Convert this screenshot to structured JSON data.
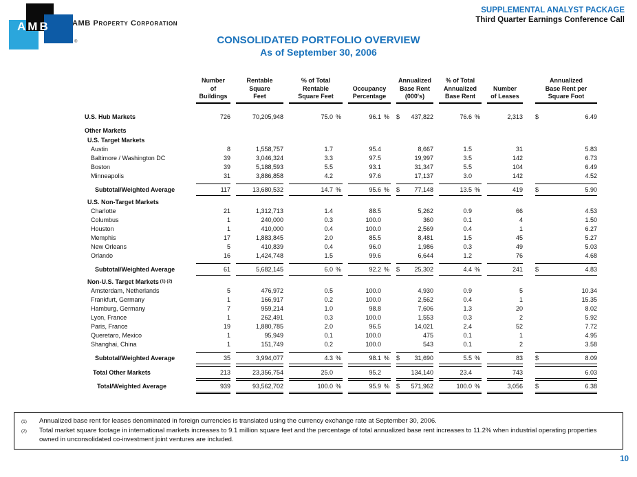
{
  "brand": {
    "logo_text": "AMB",
    "registered_mark": "®",
    "company_name": "AMB Property Corporation",
    "logo_colors": {
      "black": "#0b0b0b",
      "dark_blue": "#0d5ba6",
      "light_blue": "#2ba6dc"
    },
    "accent_blue": "#1b73bc"
  },
  "header": {
    "line1": "SUPPLEMENTAL ANALYST PACKAGE",
    "line2": "Third Quarter Earnings Conference Call"
  },
  "title": {
    "line1": "CONSOLIDATED PORTFOLIO OVERVIEW",
    "line2": "As of September 30, 2006"
  },
  "table": {
    "column_headers": [
      [
        "Number",
        "of",
        "Buildings"
      ],
      [
        "Rentable",
        "Square",
        "Feet"
      ],
      [
        "% of Total",
        "Rentable",
        "Square Feet"
      ],
      [
        "Occupancy",
        "Percentage"
      ],
      [
        "Annualized",
        "Base Rent",
        "(000's)"
      ],
      [
        "% of Total",
        "Annualized",
        "Base Rent"
      ],
      [
        "Number",
        "of Leases"
      ],
      [
        "Annualized",
        "Base Rent per",
        "Square Foot"
      ]
    ],
    "rows": [
      {
        "label": "U.S. Hub Markets",
        "type": "hub",
        "cells": [
          "726",
          "70,205,948",
          "75.0",
          "%",
          "96.1",
          "%",
          "$",
          "437,822",
          "76.6",
          "%",
          "2,313",
          "$",
          "6.49"
        ]
      },
      {
        "label": "Other Markets",
        "type": "sec0",
        "cells": null
      },
      {
        "label": "U.S. Target Markets",
        "type": "sec1",
        "cells": null
      },
      {
        "label": "Austin",
        "type": "item",
        "cells": [
          "8",
          "1,558,757",
          "1.7",
          "",
          "95.4",
          "",
          "",
          "8,667",
          "1.5",
          "",
          "31",
          "",
          "5.83"
        ]
      },
      {
        "label": "Baltimore / Washington DC",
        "type": "item",
        "cells": [
          "39",
          "3,046,324",
          "3.3",
          "",
          "97.5",
          "",
          "",
          "19,997",
          "3.5",
          "",
          "142",
          "",
          "6.73"
        ]
      },
      {
        "label": "Boston",
        "type": "item",
        "cells": [
          "39",
          "5,188,593",
          "5.5",
          "",
          "93.1",
          "",
          "",
          "31,347",
          "5.5",
          "",
          "104",
          "",
          "6.49"
        ]
      },
      {
        "label": "Minneapolis",
        "type": "item",
        "cells": [
          "31",
          "3,886,858",
          "4.2",
          "",
          "97.6",
          "",
          "",
          "17,137",
          "3.0",
          "",
          "142",
          "",
          "4.52"
        ]
      },
      {
        "label": "Subtotal/Weighted Average",
        "type": "subtotal",
        "cells": [
          "117",
          "13,680,532",
          "14.7",
          "%",
          "95.6",
          "%",
          "$",
          "77,148",
          "13.5",
          "%",
          "419",
          "$",
          "5.90"
        ]
      },
      {
        "label": "U.S. Non-Target Markets",
        "type": "sec1",
        "cells": null
      },
      {
        "label": "Charlotte",
        "type": "item",
        "cells": [
          "21",
          "1,312,713",
          "1.4",
          "",
          "88.5",
          "",
          "",
          "5,262",
          "0.9",
          "",
          "66",
          "",
          "4.53"
        ]
      },
      {
        "label": "Columbus",
        "type": "item",
        "cells": [
          "1",
          "240,000",
          "0.3",
          "",
          "100.0",
          "",
          "",
          "360",
          "0.1",
          "",
          "4",
          "",
          "1.50"
        ]
      },
      {
        "label": "Houston",
        "type": "item",
        "cells": [
          "1",
          "410,000",
          "0.4",
          "",
          "100.0",
          "",
          "",
          "2,569",
          "0.4",
          "",
          "1",
          "",
          "6.27"
        ]
      },
      {
        "label": "Memphis",
        "type": "item",
        "cells": [
          "17",
          "1,883,845",
          "2.0",
          "",
          "85.5",
          "",
          "",
          "8,481",
          "1.5",
          "",
          "45",
          "",
          "5.27"
        ]
      },
      {
        "label": "New Orleans",
        "type": "item",
        "cells": [
          "5",
          "410,839",
          "0.4",
          "",
          "96.0",
          "",
          "",
          "1,986",
          "0.3",
          "",
          "49",
          "",
          "5.03"
        ]
      },
      {
        "label": "Orlando",
        "type": "item",
        "cells": [
          "16",
          "1,424,748",
          "1.5",
          "",
          "99.6",
          "",
          "",
          "6,644",
          "1.2",
          "",
          "76",
          "",
          "4.68"
        ]
      },
      {
        "label": "Subtotal/Weighted Average",
        "type": "subtotal",
        "cells": [
          "61",
          "5,682,145",
          "6.0",
          "%",
          "92.2",
          "%",
          "$",
          "25,302",
          "4.4",
          "%",
          "241",
          "$",
          "4.83"
        ]
      },
      {
        "label": "Non-U.S. Target Markets",
        "type": "sec1",
        "sup": "(1) (2)",
        "cells": null
      },
      {
        "label": "Amsterdam, Netherlands",
        "type": "item",
        "cells": [
          "5",
          "476,972",
          "0.5",
          "",
          "100.0",
          "",
          "",
          "4,930",
          "0.9",
          "",
          "5",
          "",
          "10.34"
        ]
      },
      {
        "label": "Frankfurt, Germany",
        "type": "item",
        "cells": [
          "1",
          "166,917",
          "0.2",
          "",
          "100.0",
          "",
          "",
          "2,562",
          "0.4",
          "",
          "1",
          "",
          "15.35"
        ]
      },
      {
        "label": "Hamburg, Germany",
        "type": "item",
        "cells": [
          "7",
          "959,214",
          "1.0",
          "",
          "98.8",
          "",
          "",
          "7,606",
          "1.3",
          "",
          "20",
          "",
          "8.02"
        ]
      },
      {
        "label": "Lyon, France",
        "type": "item",
        "cells": [
          "1",
          "262,491",
          "0.3",
          "",
          "100.0",
          "",
          "",
          "1,553",
          "0.3",
          "",
          "2",
          "",
          "5.92"
        ]
      },
      {
        "label": "Paris, France",
        "type": "item",
        "cells": [
          "19",
          "1,880,785",
          "2.0",
          "",
          "96.5",
          "",
          "",
          "14,021",
          "2.4",
          "",
          "52",
          "",
          "7.72"
        ]
      },
      {
        "label": "Queretaro, Mexico",
        "type": "item",
        "cells": [
          "1",
          "95,949",
          "0.1",
          "",
          "100.0",
          "",
          "",
          "475",
          "0.1",
          "",
          "1",
          "",
          "4.95"
        ]
      },
      {
        "label": "Shanghai, China",
        "type": "item",
        "cells": [
          "1",
          "151,749",
          "0.2",
          "",
          "100.0",
          "",
          "",
          "543",
          "0.1",
          "",
          "2",
          "",
          "3.58"
        ]
      },
      {
        "label": "Subtotal/Weighted Average",
        "type": "subtotal",
        "cells": [
          "35",
          "3,994,077",
          "4.3",
          "%",
          "98.1",
          "%",
          "$",
          "31,690",
          "5.5",
          "%",
          "83",
          "$",
          "8.09"
        ]
      },
      {
        "label": "Total Other Markets",
        "type": "totalother",
        "cells": [
          "213",
          "23,356,754",
          "25.0",
          "",
          "95.2",
          "",
          "",
          "134,140",
          "23.4",
          "",
          "743",
          "",
          "6.03"
        ]
      },
      {
        "label": "Total/Weighted Average",
        "type": "grand",
        "cells": [
          "939",
          "93,562,702",
          "100.0",
          "%",
          "95.9",
          "%",
          "$",
          "571,962",
          "100.0",
          "%",
          "3,056",
          "$",
          "6.38"
        ]
      }
    ]
  },
  "footnotes": {
    "items": [
      {
        "marker": "(1)",
        "text": "Annualized base rent for leases denominated in foreign currencies is translated using the currency exchange rate at September 30, 2006."
      },
      {
        "marker": "(2)",
        "text": "Total market square footage in international markets increases to 9.1 million square feet and the percentage of total annualized base rent increases to 11.2% when industrial operating properties owned in unconsolidated co-investment joint ventures are included."
      }
    ]
  },
  "page_number": "10"
}
